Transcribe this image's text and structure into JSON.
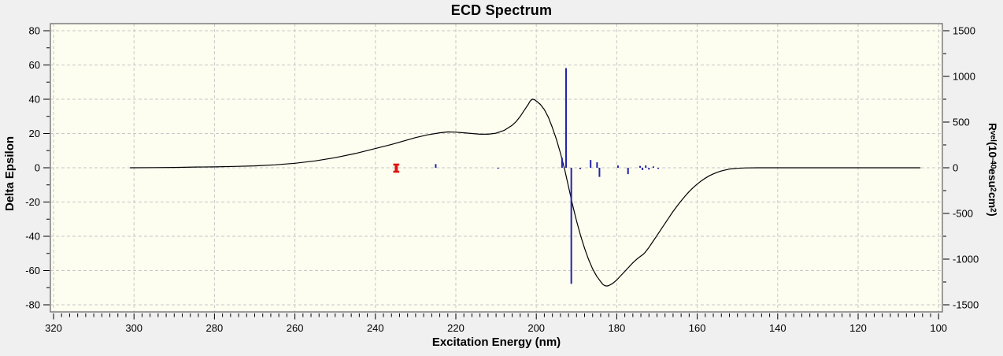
{
  "window": {
    "background": "#f0f0f0",
    "plot_background": "#fdfdf0",
    "frame_color": "#606060",
    "grid_color": "#c8c8c8",
    "tick_color": "#000000",
    "text_color": "#000000"
  },
  "chart_data": {
    "type": "line+bar",
    "title": "ECD Spectrum",
    "xlabel": "Excitation Energy (nm)",
    "ylabel": "Delta Epsilon",
    "y2label": "Rvel (10-40 esu2 cm2)",
    "y2label_rich": [
      {
        "t": "R"
      },
      {
        "t": "vel",
        "s": "sub"
      },
      {
        "t": " (10"
      },
      {
        "t": "-40",
        "s": "sup"
      },
      {
        "t": " esu"
      },
      {
        "t": "2",
        "s": "sup"
      },
      {
        "t": " cm"
      },
      {
        "t": "2",
        "s": "sup"
      },
      {
        "t": ")"
      }
    ],
    "xlim": [
      320,
      100
    ],
    "x_reversed": true,
    "ylim": [
      -80,
      80
    ],
    "y2lim": [
      -1500,
      1500
    ],
    "xticks": [
      320,
      300,
      280,
      260,
      240,
      220,
      200,
      180,
      160,
      140,
      120,
      100
    ],
    "yticks": [
      80,
      60,
      40,
      20,
      0,
      -20,
      -40,
      -60,
      -80
    ],
    "y2ticks": [
      1500,
      1000,
      500,
      0,
      -500,
      -1000,
      -1500
    ],
    "x_minor_step": 2,
    "y_minor_step": 10,
    "y2_minor_step": 250,
    "grid": "dashed",
    "legend": "none",
    "series": [
      {
        "name": "ecd-spectrum-curve",
        "type": "line",
        "axis": "left",
        "color": "#000000",
        "points": [
          [
            301,
            0
          ],
          [
            295,
            0.1
          ],
          [
            290,
            0.2
          ],
          [
            285,
            0.4
          ],
          [
            280,
            0.5
          ],
          [
            275,
            0.8
          ],
          [
            270,
            1.1
          ],
          [
            265,
            1.7
          ],
          [
            260,
            2.6
          ],
          [
            255,
            4
          ],
          [
            250,
            5.9
          ],
          [
            245,
            8.3
          ],
          [
            240,
            11.2
          ],
          [
            236,
            13.6
          ],
          [
            233,
            15.6
          ],
          [
            230,
            17.6
          ],
          [
            227,
            19.2
          ],
          [
            224,
            20.4
          ],
          [
            222,
            20.9
          ],
          [
            220,
            20.8
          ],
          [
            218,
            20.4
          ],
          [
            216,
            20
          ],
          [
            214,
            19.6
          ],
          [
            212,
            19.6
          ],
          [
            210,
            20.2
          ],
          [
            208,
            21.8
          ],
          [
            206,
            24.8
          ],
          [
            205,
            27
          ],
          [
            204,
            30
          ],
          [
            203,
            33.5
          ],
          [
            202,
            37
          ],
          [
            201.5,
            39
          ],
          [
            201,
            40
          ],
          [
            200.5,
            39.8
          ],
          [
            200,
            39
          ],
          [
            199,
            37
          ],
          [
            198,
            34
          ],
          [
            197,
            29.5
          ],
          [
            196,
            23.5
          ],
          [
            195,
            16.5
          ],
          [
            194,
            8.5
          ],
          [
            193.5,
            4
          ],
          [
            193,
            -0.5
          ],
          [
            192,
            -11
          ],
          [
            191,
            -21.5
          ],
          [
            190,
            -31
          ],
          [
            189,
            -39.5
          ],
          [
            188,
            -47
          ],
          [
            187,
            -53.5
          ],
          [
            186,
            -59
          ],
          [
            185,
            -63.3
          ],
          [
            184,
            -66.5
          ],
          [
            183.5,
            -68
          ],
          [
            183,
            -68.8
          ],
          [
            182.5,
            -69
          ],
          [
            182,
            -68.8
          ],
          [
            181,
            -67.5
          ],
          [
            180,
            -65.5
          ],
          [
            179,
            -63
          ],
          [
            178,
            -60.5
          ],
          [
            177,
            -58
          ],
          [
            176,
            -55.5
          ],
          [
            175,
            -53.3
          ],
          [
            174,
            -51.5
          ],
          [
            173.5,
            -50.7
          ],
          [
            173,
            -49.5
          ],
          [
            172,
            -46.5
          ],
          [
            171,
            -43
          ],
          [
            170,
            -39.5
          ],
          [
            169,
            -36
          ],
          [
            168,
            -32.5
          ],
          [
            167,
            -29
          ],
          [
            166,
            -25.5
          ],
          [
            165,
            -22.3
          ],
          [
            164,
            -19.3
          ],
          [
            163,
            -16.5
          ],
          [
            162,
            -13.9
          ],
          [
            161,
            -11.6
          ],
          [
            160,
            -9.5
          ],
          [
            159,
            -7.7
          ],
          [
            158,
            -6.1
          ],
          [
            157,
            -4.7
          ],
          [
            156,
            -3.6
          ],
          [
            155,
            -2.6
          ],
          [
            154,
            -1.9
          ],
          [
            153,
            -1.3
          ],
          [
            152,
            -0.8
          ],
          [
            151,
            -0.5
          ],
          [
            150,
            -0.3
          ],
          [
            148,
            -0.1
          ],
          [
            145,
            0
          ],
          [
            140,
            0
          ],
          [
            135,
            0
          ],
          [
            130,
            0
          ],
          [
            125,
            0
          ],
          [
            120,
            0
          ],
          [
            115,
            0
          ],
          [
            110,
            0
          ],
          [
            104.5,
            0
          ]
        ]
      },
      {
        "name": "rotatory-strength-bars",
        "type": "bar",
        "axis": "right",
        "color": "#2222ab",
        "points": [
          [
            225,
            40
          ],
          [
            209.5,
            -10
          ],
          [
            193.6,
            110
          ],
          [
            192.6,
            1090
          ],
          [
            191.3,
            -1270
          ],
          [
            189.1,
            -15
          ],
          [
            186.5,
            85
          ],
          [
            184.9,
            60
          ],
          [
            184.3,
            -100
          ],
          [
            179.7,
            25
          ],
          [
            177.2,
            -70
          ],
          [
            174.2,
            20
          ],
          [
            173.6,
            -25
          ],
          [
            172.8,
            25
          ],
          [
            172,
            -20
          ],
          [
            170.9,
            15
          ],
          [
            169.7,
            -12
          ]
        ]
      },
      {
        "name": "reference-marker",
        "type": "marker",
        "axis": "left",
        "color": "#dd1111",
        "points": [
          [
            234.8,
            0
          ]
        ]
      }
    ]
  }
}
